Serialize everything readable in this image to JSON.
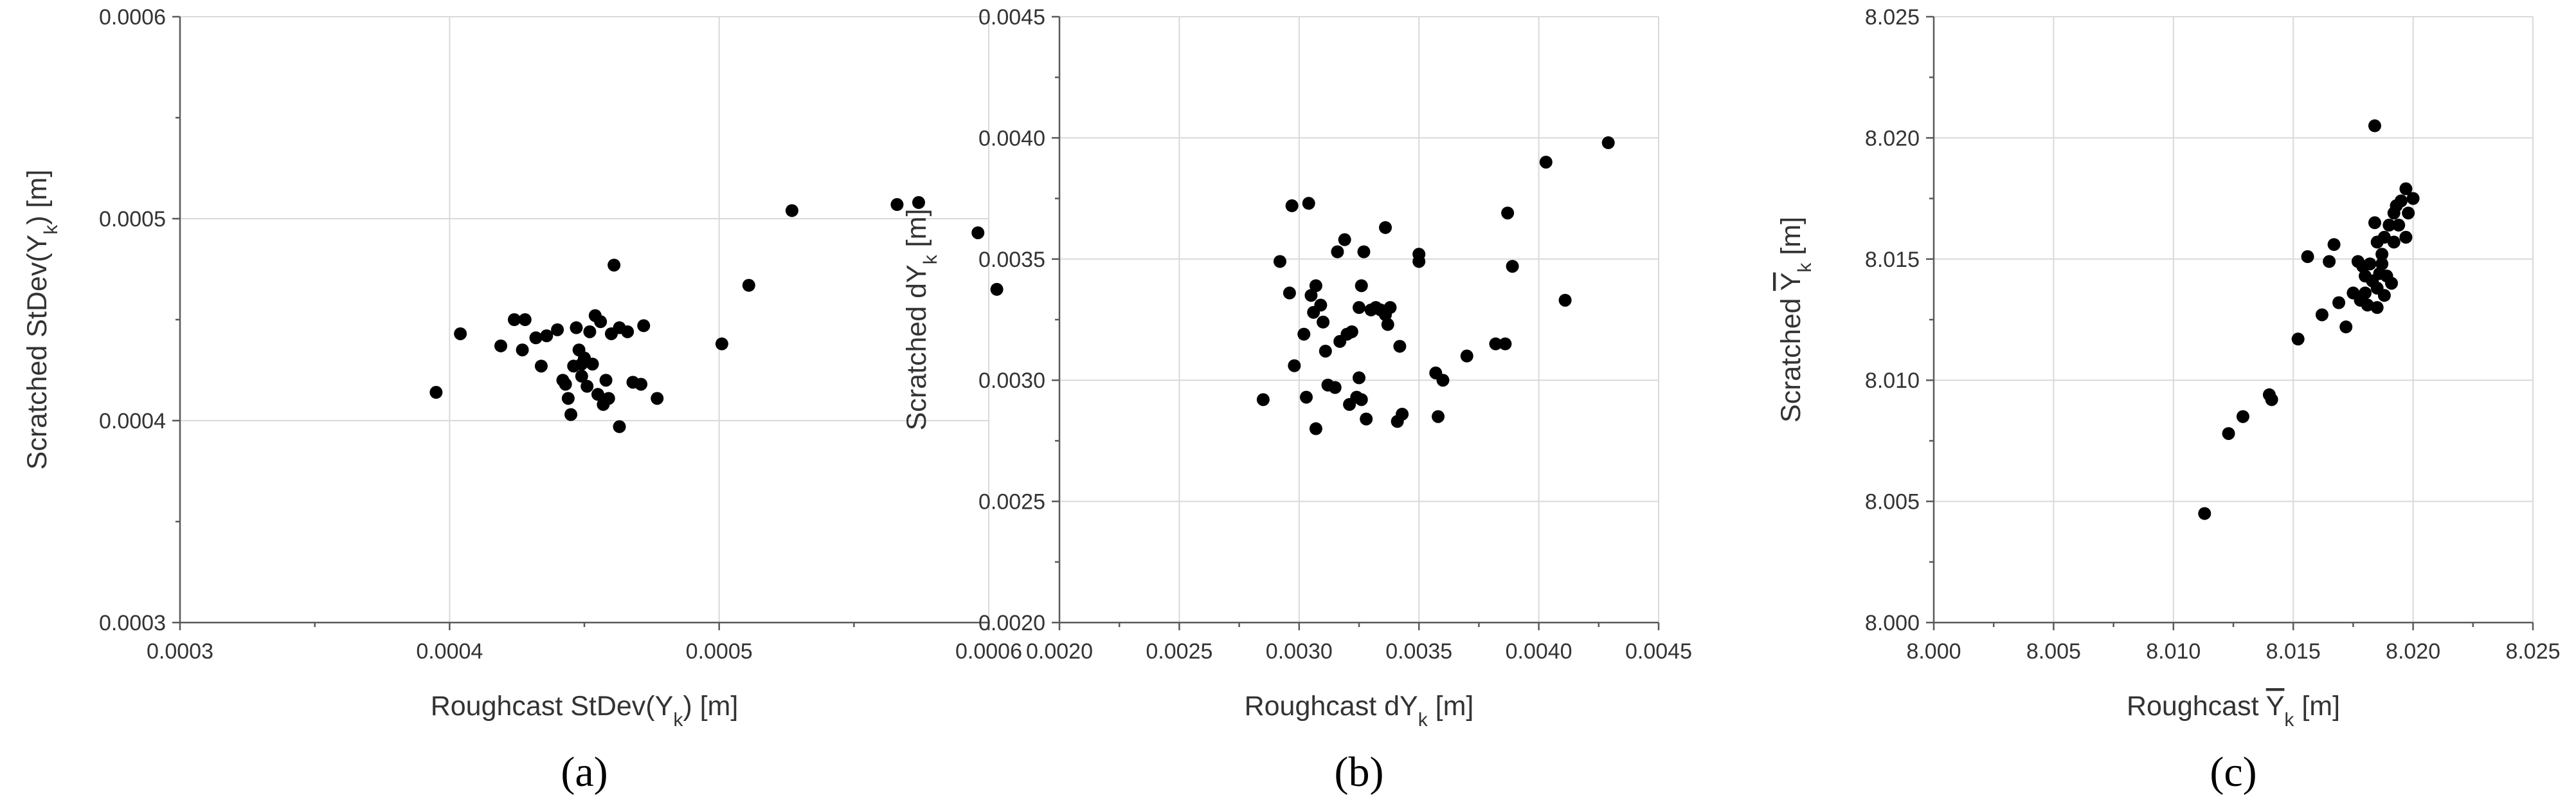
{
  "chart_data": [
    {
      "type": "scatter",
      "panel_label": "(a)",
      "xlabel": {
        "prefix": "Roughcast StDev(Y",
        "sub": "k",
        "suffix": ") [m]"
      },
      "ylabel": {
        "prefix": "Scratched StDev(Y",
        "sub": "k",
        "suffix": ") [m]"
      },
      "xlim": [
        0.0003,
        0.0006
      ],
      "ylim": [
        0.0003,
        0.0006
      ],
      "xticks": [
        "0.0003",
        "0.0004",
        "0.0005",
        "0.0006"
      ],
      "yticks": [
        "0.0003",
        "0.0004",
        "0.0005",
        "0.0006"
      ],
      "grid": true,
      "points": [
        [
          0.000395,
          0.000414
        ],
        [
          0.000404,
          0.000443
        ],
        [
          0.000419,
          0.000437
        ],
        [
          0.000424,
          0.00045
        ],
        [
          0.000428,
          0.00045
        ],
        [
          0.000427,
          0.000435
        ],
        [
          0.000432,
          0.000441
        ],
        [
          0.000434,
          0.000427
        ],
        [
          0.000436,
          0.000442
        ],
        [
          0.00044,
          0.000445
        ],
        [
          0.000443,
          0.000418
        ],
        [
          0.000444,
          0.000411
        ],
        [
          0.000445,
          0.000403
        ],
        [
          0.000446,
          0.000427
        ],
        [
          0.000447,
          0.000446
        ],
        [
          0.000448,
          0.000435
        ],
        [
          0.000449,
          0.000422
        ],
        [
          0.00045,
          0.000431
        ],
        [
          0.000451,
          0.000417
        ],
        [
          0.000452,
          0.000444
        ],
        [
          0.000453,
          0.000428
        ],
        [
          0.000454,
          0.000452
        ],
        [
          0.000455,
          0.000413
        ],
        [
          0.000456,
          0.000449
        ],
        [
          0.000457,
          0.000408
        ],
        [
          0.000458,
          0.00042
        ],
        [
          0.000459,
          0.000411
        ],
        [
          0.00046,
          0.000443
        ],
        [
          0.000461,
          0.000477
        ],
        [
          0.000463,
          0.000446
        ],
        [
          0.000463,
          0.000397
        ],
        [
          0.000466,
          0.000444
        ],
        [
          0.000468,
          0.000419
        ],
        [
          0.000471,
          0.000418
        ],
        [
          0.000472,
          0.000447
        ],
        [
          0.000477,
          0.000411
        ],
        [
          0.000442,
          0.00042
        ],
        [
          0.000449,
          0.000428
        ],
        [
          0.000501,
          0.000438
        ],
        [
          0.000511,
          0.000467
        ],
        [
          0.000527,
          0.000504
        ],
        [
          0.000566,
          0.000507
        ],
        [
          0.000574,
          0.000508
        ],
        [
          0.000596,
          0.000493
        ],
        [
          0.000603,
          0.000465
        ]
      ]
    },
    {
      "type": "scatter",
      "panel_label": "(b)",
      "xlabel": {
        "prefix": "Roughcast dY",
        "sub": "k",
        "suffix": " [m]"
      },
      "ylabel": {
        "prefix": "Scratched dY",
        "sub": "k",
        "suffix": " [m]"
      },
      "xlim": [
        0.002,
        0.0045
      ],
      "ylim": [
        0.002,
        0.0045
      ],
      "xticks": [
        "0.0020",
        "0.0025",
        "0.0030",
        "0.0035",
        "0.0040",
        "0.0045"
      ],
      "yticks": [
        "0.0020",
        "0.0025",
        "0.0030",
        "0.0035",
        "0.0040",
        "0.0045"
      ],
      "grid": true,
      "points": [
        [
          0.00285,
          0.00292
        ],
        [
          0.00292,
          0.00349
        ],
        [
          0.00296,
          0.00336
        ],
        [
          0.00297,
          0.00372
        ],
        [
          0.00298,
          0.00306
        ],
        [
          0.00302,
          0.00319
        ],
        [
          0.00303,
          0.00293
        ],
        [
          0.00304,
          0.00373
        ],
        [
          0.00305,
          0.00335
        ],
        [
          0.00306,
          0.00328
        ],
        [
          0.00307,
          0.00339
        ],
        [
          0.00307,
          0.0028
        ],
        [
          0.00309,
          0.00331
        ],
        [
          0.0031,
          0.00324
        ],
        [
          0.00311,
          0.00312
        ],
        [
          0.00312,
          0.00298
        ],
        [
          0.00315,
          0.00297
        ],
        [
          0.00316,
          0.00353
        ],
        [
          0.00317,
          0.00316
        ],
        [
          0.00319,
          0.00358
        ],
        [
          0.0032,
          0.00319
        ],
        [
          0.00321,
          0.0029
        ],
        [
          0.00322,
          0.0032
        ],
        [
          0.00324,
          0.00293
        ],
        [
          0.00325,
          0.00301
        ],
        [
          0.00325,
          0.0033
        ],
        [
          0.00326,
          0.00292
        ],
        [
          0.00326,
          0.00339
        ],
        [
          0.00327,
          0.00353
        ],
        [
          0.00328,
          0.00284
        ],
        [
          0.0033,
          0.00329
        ],
        [
          0.00332,
          0.0033
        ],
        [
          0.00334,
          0.00329
        ],
        [
          0.00336,
          0.00363
        ],
        [
          0.00336,
          0.00327
        ],
        [
          0.00337,
          0.00323
        ],
        [
          0.00338,
          0.0033
        ],
        [
          0.00341,
          0.00283
        ],
        [
          0.00342,
          0.00314
        ],
        [
          0.00343,
          0.00286
        ],
        [
          0.0035,
          0.00352
        ],
        [
          0.0035,
          0.00349
        ],
        [
          0.00357,
          0.00303
        ],
        [
          0.00358,
          0.00285
        ],
        [
          0.0036,
          0.003
        ],
        [
          0.0037,
          0.0031
        ],
        [
          0.00382,
          0.00315
        ],
        [
          0.00386,
          0.00315
        ],
        [
          0.00387,
          0.00369
        ],
        [
          0.00389,
          0.00347
        ],
        [
          0.00403,
          0.0039
        ],
        [
          0.00411,
          0.00333
        ],
        [
          0.00429,
          0.00398
        ]
      ]
    },
    {
      "type": "scatter",
      "panel_label": "(c)",
      "xlabel": {
        "prefix": "Roughcast ",
        "over": "Y",
        "sub": "k",
        "suffix": " [m]"
      },
      "ylabel": {
        "prefix": "Scratched ",
        "over": "Y",
        "sub": "k",
        "suffix": " [m]"
      },
      "xlim": [
        8.0,
        8.025
      ],
      "ylim": [
        8.0,
        8.025
      ],
      "xticks": [
        "8.000",
        "8.005",
        "8.010",
        "8.015",
        "8.020",
        "8.025"
      ],
      "yticks": [
        "8.000",
        "8.005",
        "8.010",
        "8.015",
        "8.020",
        "8.025"
      ],
      "grid": true,
      "points": [
        [
          8.0113,
          8.0045
        ],
        [
          8.0123,
          8.0078
        ],
        [
          8.0129,
          8.0085
        ],
        [
          8.014,
          8.0094
        ],
        [
          8.0141,
          8.0092
        ],
        [
          8.0152,
          8.0117
        ],
        [
          8.0156,
          8.0151
        ],
        [
          8.0162,
          8.0127
        ],
        [
          8.0165,
          8.0149
        ],
        [
          8.0167,
          8.0156
        ],
        [
          8.0169,
          8.0132
        ],
        [
          8.0172,
          8.0122
        ],
        [
          8.0175,
          8.0136
        ],
        [
          8.0177,
          8.0149
        ],
        [
          8.0178,
          8.0133
        ],
        [
          8.0179,
          8.0147
        ],
        [
          8.018,
          8.0136
        ],
        [
          8.018,
          8.0143
        ],
        [
          8.0181,
          8.0131
        ],
        [
          8.0182,
          8.0148
        ],
        [
          8.0183,
          8.0141
        ],
        [
          8.0184,
          8.0205
        ],
        [
          8.0184,
          8.0165
        ],
        [
          8.0185,
          8.0157
        ],
        [
          8.0185,
          8.013
        ],
        [
          8.0185,
          8.0138
        ],
        [
          8.0186,
          8.0144
        ],
        [
          8.0187,
          8.0152
        ],
        [
          8.0187,
          8.0148
        ],
        [
          8.0188,
          8.0135
        ],
        [
          8.0188,
          8.0159
        ],
        [
          8.0189,
          8.0143
        ],
        [
          8.019,
          8.0164
        ],
        [
          8.0191,
          8.014
        ],
        [
          8.0192,
          8.0169
        ],
        [
          8.0192,
          8.0157
        ],
        [
          8.0193,
          8.0172
        ],
        [
          8.0194,
          8.0164
        ],
        [
          8.0195,
          8.0174
        ],
        [
          8.0197,
          8.0179
        ],
        [
          8.0197,
          8.0159
        ],
        [
          8.0198,
          8.0169
        ],
        [
          8.02,
          8.0175
        ]
      ]
    }
  ]
}
